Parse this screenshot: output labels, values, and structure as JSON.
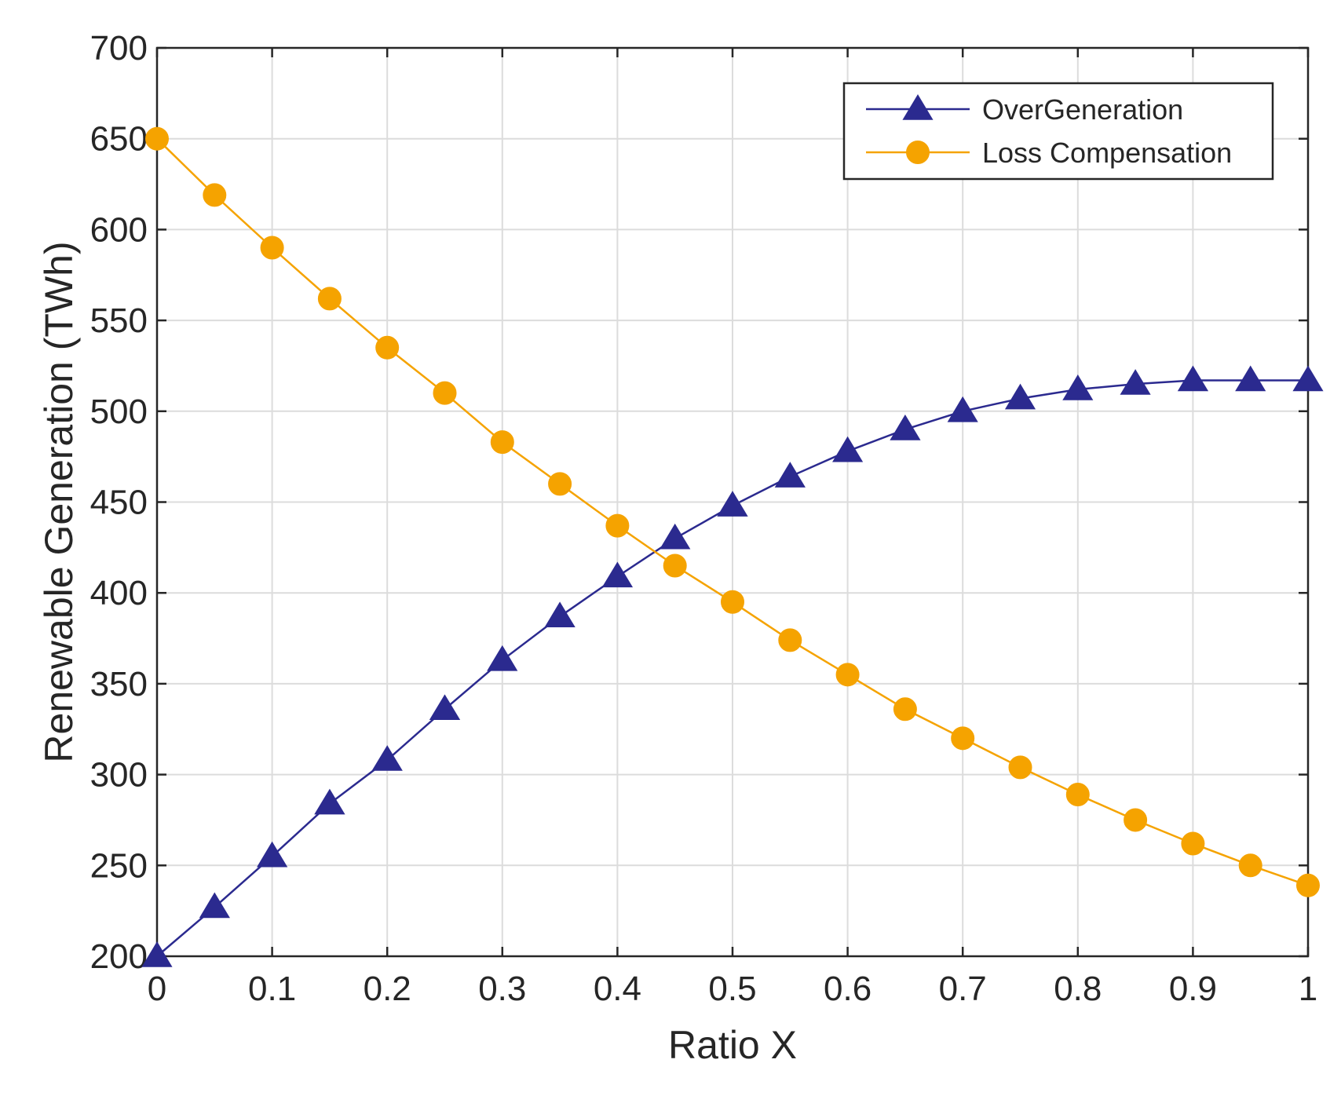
{
  "chart_data": {
    "type": "line",
    "title": "",
    "xlabel": "Ratio X",
    "ylabel": "Renewable Generation (TWh)",
    "xlim": [
      0,
      1
    ],
    "ylim": [
      200,
      700
    ],
    "grid": true,
    "legend_position": "top-right",
    "x_ticks": [
      0,
      0.1,
      0.2,
      0.3,
      0.4,
      0.5,
      0.6,
      0.7,
      0.8,
      0.9,
      1
    ],
    "x_tick_labels": [
      "0",
      "0.1",
      "0.2",
      "0.3",
      "0.4",
      "0.5",
      "0.6",
      "0.7",
      "0.8",
      "0.9",
      "1"
    ],
    "y_ticks": [
      200,
      250,
      300,
      350,
      400,
      450,
      500,
      550,
      600,
      650,
      700
    ],
    "y_tick_labels": [
      "200",
      "250",
      "300",
      "350",
      "400",
      "450",
      "500",
      "550",
      "600",
      "650",
      "700"
    ],
    "x": [
      0,
      0.05,
      0.1,
      0.15,
      0.2,
      0.25,
      0.3,
      0.35,
      0.4,
      0.45,
      0.5,
      0.55,
      0.6,
      0.65,
      0.7,
      0.75,
      0.8,
      0.85,
      0.9,
      0.95,
      1
    ],
    "series": [
      {
        "name": "OverGeneration",
        "color": "#2b2a8f",
        "marker": "triangle",
        "values": [
          200,
          227,
          255,
          284,
          308,
          336,
          363,
          387,
          409,
          430,
          448,
          464,
          478,
          490,
          500,
          507,
          512,
          515,
          517,
          517,
          517
        ]
      },
      {
        "name": "Loss Compensation",
        "color": "#f5a300",
        "marker": "circle",
        "values": [
          650,
          619,
          590,
          562,
          535,
          510,
          483,
          460,
          437,
          415,
          395,
          374,
          355,
          336,
          320,
          304,
          289,
          275,
          262,
          250,
          239
        ]
      }
    ]
  }
}
